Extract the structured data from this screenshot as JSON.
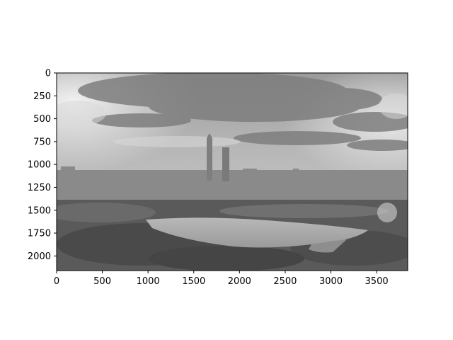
{
  "image": {
    "description_colors": {
      "sky_light": "#dedede",
      "cloud_dark": "#7d7d7d",
      "skyline": "#8a8a8a",
      "trees": "#4f4f4f",
      "water": "#a9a9a9"
    },
    "width_units": 3840,
    "height_units": 2160
  },
  "axes": {
    "x_ticks": [
      "0",
      "500",
      "1000",
      "1500",
      "2000",
      "2500",
      "3000",
      "3500"
    ],
    "y_ticks": [
      "0",
      "250",
      "500",
      "750",
      "1000",
      "1250",
      "1500",
      "1750",
      "2000"
    ],
    "x_range": [
      0,
      3840
    ],
    "y_range": [
      0,
      2160
    ],
    "y_inverted": true
  }
}
